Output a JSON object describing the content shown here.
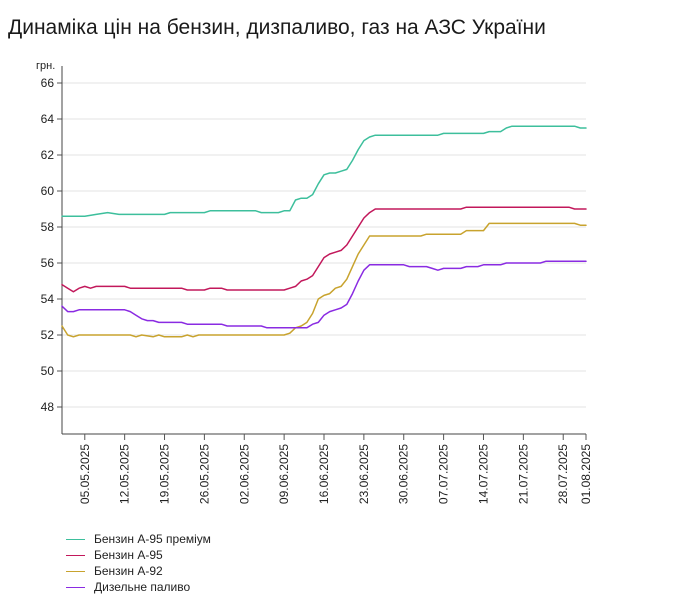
{
  "page": {
    "title": "Динаміка цін на бензин, дизпаливо, газ на АЗС України"
  },
  "chart_data": {
    "type": "line",
    "title": "Динаміка цін на бензин, дизпаливо, газ на АЗС України",
    "ylabel": "грн.",
    "xlabel": "",
    "ylim": [
      46.5,
      66.5
    ],
    "xlim": [
      "2025-05-01",
      "2025-08-01"
    ],
    "y_ticks": [
      48,
      50,
      52,
      54,
      56,
      58,
      60,
      62,
      64,
      66
    ],
    "x_ticks": [
      "05.05.2025",
      "12.05.2025",
      "19.05.2025",
      "26.05.2025",
      "02.06.2025",
      "09.06.2025",
      "16.06.2025",
      "23.06.2025",
      "30.06.2025",
      "07.07.2025",
      "14.07.2025",
      "21.07.2025",
      "28.07.2025",
      "01.08.2025"
    ],
    "grid": "horizontal",
    "legend_position": "bottom-left",
    "series": [
      {
        "name": "Бензин А-95 преміум",
        "color": "#3dbf9c",
        "points": [
          [
            "2025-05-01",
            58.6
          ],
          [
            "2025-05-02",
            58.6
          ],
          [
            "2025-05-03",
            58.6
          ],
          [
            "2025-05-05",
            58.6
          ],
          [
            "2025-05-07",
            58.7
          ],
          [
            "2025-05-09",
            58.8
          ],
          [
            "2025-05-11",
            58.7
          ],
          [
            "2025-05-19",
            58.7
          ],
          [
            "2025-05-20",
            58.8
          ],
          [
            "2025-05-26",
            58.8
          ],
          [
            "2025-05-27",
            58.9
          ],
          [
            "2025-06-04",
            58.9
          ],
          [
            "2025-06-05",
            58.8
          ],
          [
            "2025-06-08",
            58.8
          ],
          [
            "2025-06-09",
            58.9
          ],
          [
            "2025-06-10",
            58.9
          ],
          [
            "2025-06-11",
            59.5
          ],
          [
            "2025-06-12",
            59.6
          ],
          [
            "2025-06-13",
            59.6
          ],
          [
            "2025-06-14",
            59.8
          ],
          [
            "2025-06-15",
            60.4
          ],
          [
            "2025-06-16",
            60.9
          ],
          [
            "2025-06-17",
            61.0
          ],
          [
            "2025-06-18",
            61.0
          ],
          [
            "2025-06-19",
            61.1
          ],
          [
            "2025-06-20",
            61.2
          ],
          [
            "2025-06-21",
            61.7
          ],
          [
            "2025-06-22",
            62.3
          ],
          [
            "2025-06-23",
            62.8
          ],
          [
            "2025-06-24",
            63.0
          ],
          [
            "2025-06-25",
            63.1
          ],
          [
            "2025-07-06",
            63.1
          ],
          [
            "2025-07-07",
            63.2
          ],
          [
            "2025-07-14",
            63.2
          ],
          [
            "2025-07-15",
            63.3
          ],
          [
            "2025-07-17",
            63.3
          ],
          [
            "2025-07-18",
            63.5
          ],
          [
            "2025-07-19",
            63.6
          ],
          [
            "2025-07-30",
            63.6
          ],
          [
            "2025-07-31",
            63.5
          ],
          [
            "2025-08-01",
            63.5
          ]
        ]
      },
      {
        "name": "Бензин А-95",
        "color": "#c2185b",
        "points": [
          [
            "2025-05-01",
            54.8
          ],
          [
            "2025-05-02",
            54.6
          ],
          [
            "2025-05-03",
            54.4
          ],
          [
            "2025-05-04",
            54.6
          ],
          [
            "2025-05-05",
            54.7
          ],
          [
            "2025-05-06",
            54.6
          ],
          [
            "2025-05-07",
            54.7
          ],
          [
            "2025-05-12",
            54.7
          ],
          [
            "2025-05-13",
            54.6
          ],
          [
            "2025-05-22",
            54.6
          ],
          [
            "2025-05-23",
            54.5
          ],
          [
            "2025-05-26",
            54.5
          ],
          [
            "2025-05-27",
            54.6
          ],
          [
            "2025-05-29",
            54.6
          ],
          [
            "2025-05-30",
            54.5
          ],
          [
            "2025-06-09",
            54.5
          ],
          [
            "2025-06-10",
            54.6
          ],
          [
            "2025-06-11",
            54.7
          ],
          [
            "2025-06-12",
            55.0
          ],
          [
            "2025-06-13",
            55.1
          ],
          [
            "2025-06-14",
            55.3
          ],
          [
            "2025-06-15",
            55.8
          ],
          [
            "2025-06-16",
            56.3
          ],
          [
            "2025-06-17",
            56.5
          ],
          [
            "2025-06-18",
            56.6
          ],
          [
            "2025-06-19",
            56.7
          ],
          [
            "2025-06-20",
            57.0
          ],
          [
            "2025-06-21",
            57.5
          ],
          [
            "2025-06-22",
            58.0
          ],
          [
            "2025-06-23",
            58.5
          ],
          [
            "2025-06-24",
            58.8
          ],
          [
            "2025-06-25",
            59.0
          ],
          [
            "2025-07-10",
            59.0
          ],
          [
            "2025-07-11",
            59.1
          ],
          [
            "2025-07-24",
            59.1
          ],
          [
            "2025-07-25",
            59.1
          ],
          [
            "2025-07-29",
            59.1
          ],
          [
            "2025-07-30",
            59.0
          ],
          [
            "2025-08-01",
            59.0
          ]
        ]
      },
      {
        "name": "Бензин А-92",
        "color": "#c8a32e",
        "points": [
          [
            "2025-05-01",
            52.5
          ],
          [
            "2025-05-02",
            52.0
          ],
          [
            "2025-05-03",
            51.9
          ],
          [
            "2025-05-04",
            52.0
          ],
          [
            "2025-05-13",
            52.0
          ],
          [
            "2025-05-14",
            51.9
          ],
          [
            "2025-05-15",
            52.0
          ],
          [
            "2025-05-17",
            51.9
          ],
          [
            "2025-05-18",
            52.0
          ],
          [
            "2025-05-19",
            51.9
          ],
          [
            "2025-05-22",
            51.9
          ],
          [
            "2025-05-23",
            52.0
          ],
          [
            "2025-05-24",
            51.9
          ],
          [
            "2025-05-25",
            52.0
          ],
          [
            "2025-06-09",
            52.0
          ],
          [
            "2025-06-10",
            52.1
          ],
          [
            "2025-06-11",
            52.4
          ],
          [
            "2025-06-12",
            52.5
          ],
          [
            "2025-06-13",
            52.7
          ],
          [
            "2025-06-14",
            53.2
          ],
          [
            "2025-06-15",
            54.0
          ],
          [
            "2025-06-16",
            54.2
          ],
          [
            "2025-06-17",
            54.3
          ],
          [
            "2025-06-18",
            54.6
          ],
          [
            "2025-06-19",
            54.7
          ],
          [
            "2025-06-20",
            55.1
          ],
          [
            "2025-06-21",
            55.8
          ],
          [
            "2025-06-22",
            56.5
          ],
          [
            "2025-06-23",
            57.0
          ],
          [
            "2025-06-24",
            57.5
          ],
          [
            "2025-07-03",
            57.5
          ],
          [
            "2025-07-04",
            57.6
          ],
          [
            "2025-07-10",
            57.6
          ],
          [
            "2025-07-11",
            57.8
          ],
          [
            "2025-07-14",
            57.8
          ],
          [
            "2025-07-15",
            58.2
          ],
          [
            "2025-07-30",
            58.2
          ],
          [
            "2025-07-31",
            58.1
          ],
          [
            "2025-08-01",
            58.1
          ]
        ]
      },
      {
        "name": "Дизельне паливо",
        "color": "#8a2be2",
        "points": [
          [
            "2025-05-01",
            53.6
          ],
          [
            "2025-05-02",
            53.3
          ],
          [
            "2025-05-03",
            53.3
          ],
          [
            "2025-05-04",
            53.4
          ],
          [
            "2025-05-12",
            53.4
          ],
          [
            "2025-05-13",
            53.3
          ],
          [
            "2025-05-14",
            53.1
          ],
          [
            "2025-05-15",
            52.9
          ],
          [
            "2025-05-16",
            52.8
          ],
          [
            "2025-05-17",
            52.8
          ],
          [
            "2025-05-18",
            52.7
          ],
          [
            "2025-05-22",
            52.7
          ],
          [
            "2025-05-23",
            52.6
          ],
          [
            "2025-05-29",
            52.6
          ],
          [
            "2025-05-30",
            52.5
          ],
          [
            "2025-06-05",
            52.5
          ],
          [
            "2025-06-06",
            52.4
          ],
          [
            "2025-06-13",
            52.4
          ],
          [
            "2025-06-14",
            52.6
          ],
          [
            "2025-06-15",
            52.7
          ],
          [
            "2025-06-16",
            53.1
          ],
          [
            "2025-06-17",
            53.3
          ],
          [
            "2025-06-18",
            53.4
          ],
          [
            "2025-06-19",
            53.5
          ],
          [
            "2025-06-20",
            53.7
          ],
          [
            "2025-06-21",
            54.3
          ],
          [
            "2025-06-22",
            55.0
          ],
          [
            "2025-06-23",
            55.6
          ],
          [
            "2025-06-24",
            55.9
          ],
          [
            "2025-06-25",
            55.9
          ],
          [
            "2025-06-30",
            55.9
          ],
          [
            "2025-07-01",
            55.8
          ],
          [
            "2025-07-04",
            55.8
          ],
          [
            "2025-07-05",
            55.7
          ],
          [
            "2025-07-06",
            55.6
          ],
          [
            "2025-07-07",
            55.7
          ],
          [
            "2025-07-10",
            55.7
          ],
          [
            "2025-07-11",
            55.8
          ],
          [
            "2025-07-13",
            55.8
          ],
          [
            "2025-07-14",
            55.9
          ],
          [
            "2025-07-17",
            55.9
          ],
          [
            "2025-07-18",
            56.0
          ],
          [
            "2025-07-24",
            56.0
          ],
          [
            "2025-07-25",
            56.1
          ],
          [
            "2025-08-01",
            56.1
          ]
        ]
      }
    ]
  }
}
